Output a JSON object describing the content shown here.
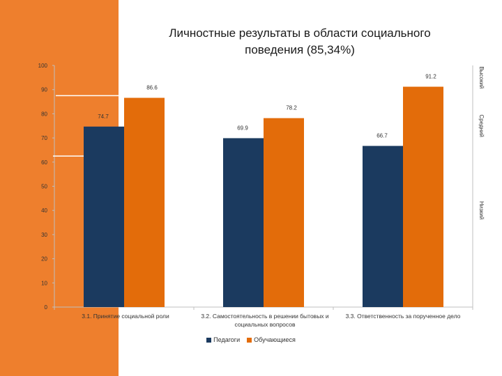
{
  "chart_data": {
    "type": "bar",
    "title_lines": [
      "Личностные результаты в области социального",
      "поведения (85,34%)"
    ],
    "categories": [
      "3.1. Принятие социальной роли",
      "3.2. Самостоятельность в решении бытовых и социальных вопросов",
      "3.3. Ответственность за порученное дело"
    ],
    "series": [
      {
        "name": "Педагоги",
        "values": [
          74.7,
          69.9,
          66.7
        ],
        "value_labels": [
          "74.7",
          "69.9",
          "66.7"
        ],
        "color": "#1b3a5f"
      },
      {
        "name": "Обучающиеся",
        "values": [
          86.6,
          78.2,
          91.2
        ],
        "value_labels": [
          "86.6",
          "78.2",
          "91.2"
        ],
        "color": "#e36c0a"
      }
    ],
    "ylim": [
      0,
      100
    ],
    "yticks": [
      0,
      10,
      20,
      30,
      40,
      50,
      60,
      70,
      80,
      90,
      100
    ],
    "level_labels": [
      "Высокий",
      "Средний",
      "Низкий"
    ],
    "reference_lines": [
      87.5,
      62.5
    ],
    "grid": false,
    "legend_position": "bottom-center"
  }
}
